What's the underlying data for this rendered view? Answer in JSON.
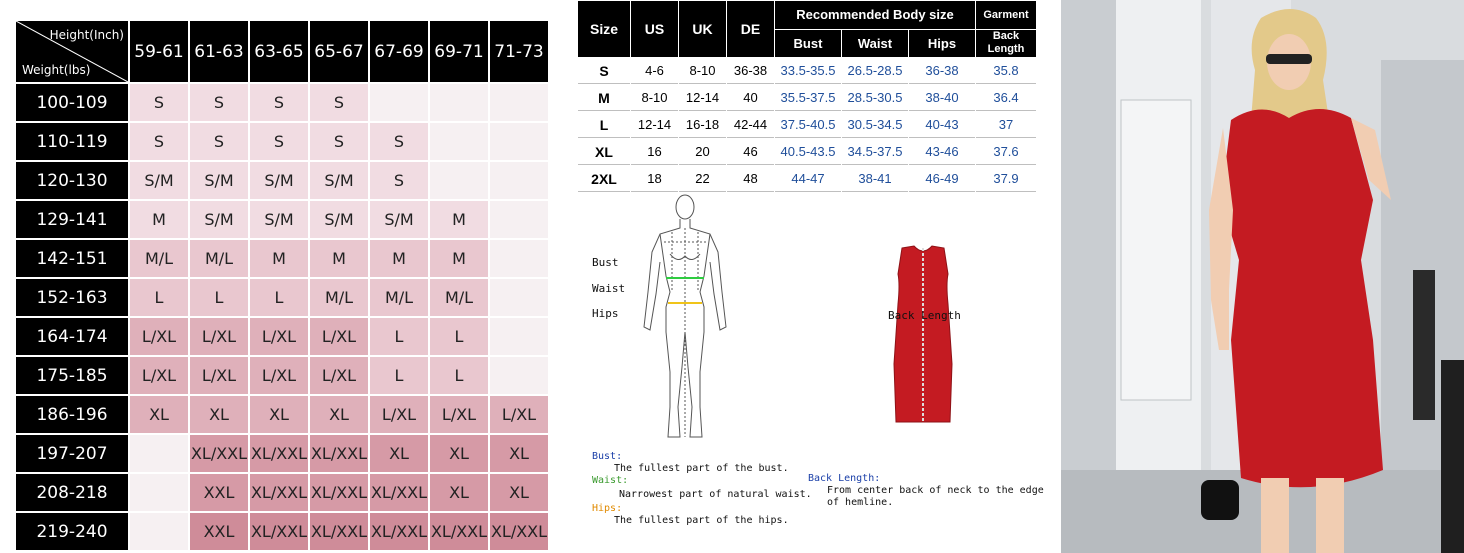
{
  "grid": {
    "corner_height": "Height(Inch)",
    "corner_weight": "Weight(lbs)",
    "heights": [
      "59-61",
      "61-63",
      "63-65",
      "65-67",
      "67-69",
      "69-71",
      "71-73"
    ],
    "rows": [
      {
        "weight": "100-109",
        "cells": [
          "S",
          "S",
          "S",
          "S",
          "",
          "",
          ""
        ],
        "shade": [
          1,
          1,
          1,
          1,
          0,
          0,
          0
        ]
      },
      {
        "weight": "110-119",
        "cells": [
          "S",
          "S",
          "S",
          "S",
          "S",
          "",
          ""
        ],
        "shade": [
          1,
          1,
          1,
          1,
          1,
          0,
          0
        ]
      },
      {
        "weight": "120-130",
        "cells": [
          "S/M",
          "S/M",
          "S/M",
          "S/M",
          "S",
          "",
          ""
        ],
        "shade": [
          1,
          1,
          1,
          1,
          1,
          0,
          0
        ]
      },
      {
        "weight": "129-141",
        "cells": [
          "M",
          "S/M",
          "S/M",
          "S/M",
          "S/M",
          "M",
          ""
        ],
        "shade": [
          1,
          1,
          1,
          1,
          1,
          1,
          0
        ]
      },
      {
        "weight": "142-151",
        "cells": [
          "M/L",
          "M/L",
          "M",
          "M",
          "M",
          "M",
          ""
        ],
        "shade": [
          2,
          2,
          2,
          2,
          2,
          2,
          0
        ]
      },
      {
        "weight": "152-163",
        "cells": [
          "L",
          "L",
          "L",
          "M/L",
          "M/L",
          "M/L",
          ""
        ],
        "shade": [
          2,
          2,
          2,
          2,
          2,
          2,
          0
        ]
      },
      {
        "weight": "164-174",
        "cells": [
          "L/XL",
          "L/XL",
          "L/XL",
          "L/XL",
          "L",
          "L",
          ""
        ],
        "shade": [
          3,
          3,
          3,
          3,
          2,
          2,
          0
        ]
      },
      {
        "weight": "175-185",
        "cells": [
          "L/XL",
          "L/XL",
          "L/XL",
          "L/XL",
          "L",
          "L",
          ""
        ],
        "shade": [
          3,
          3,
          3,
          3,
          2,
          2,
          0
        ]
      },
      {
        "weight": "186-196",
        "cells": [
          "XL",
          "XL",
          "XL",
          "XL",
          "L/XL",
          "L/XL",
          "L/XL"
        ],
        "shade": [
          3,
          3,
          3,
          3,
          3,
          3,
          3
        ]
      },
      {
        "weight": "197-207",
        "cells": [
          "",
          "XL/XXL",
          "XL/XXL",
          "XL/XXL",
          "XL",
          "XL",
          "XL"
        ],
        "shade": [
          0,
          4,
          4,
          4,
          4,
          4,
          4
        ]
      },
      {
        "weight": "208-218",
        "cells": [
          "",
          "XXL",
          "XL/XXL",
          "XL/XXL",
          "XL/XXL",
          "XL",
          "XL"
        ],
        "shade": [
          0,
          4,
          4,
          4,
          4,
          4,
          4
        ]
      },
      {
        "weight": "219-240",
        "cells": [
          "",
          "XXL",
          "XL/XXL",
          "XL/XXL",
          "XL/XXL",
          "XL/XXL",
          "XL/XXL"
        ],
        "shade": [
          0,
          5,
          5,
          5,
          5,
          5,
          5
        ]
      }
    ]
  },
  "size_chart": {
    "h_size": "Size",
    "h_us": "US",
    "h_uk": "UK",
    "h_de": "DE",
    "h_recommended": "Recommended Body size",
    "h_garment": "Garment",
    "h_bust": "Bust",
    "h_waist": "Waist",
    "h_hips": "Hips",
    "h_back_length": "Back Length",
    "rows": [
      {
        "size": "S",
        "us": "4-6",
        "uk": "8-10",
        "de": "36-38",
        "bust": "33.5-35.5",
        "waist": "26.5-28.5",
        "hips": "36-38",
        "back": "35.8"
      },
      {
        "size": "M",
        "us": "8-10",
        "uk": "12-14",
        "de": "40",
        "bust": "35.5-37.5",
        "waist": "28.5-30.5",
        "hips": "38-40",
        "back": "36.4"
      },
      {
        "size": "L",
        "us": "12-14",
        "uk": "16-18",
        "de": "42-44",
        "bust": "37.5-40.5",
        "waist": "30.5-34.5",
        "hips": "40-43",
        "back": "37"
      },
      {
        "size": "XL",
        "us": "16",
        "uk": "20",
        "de": "46",
        "bust": "40.5-43.5",
        "waist": "34.5-37.5",
        "hips": "43-46",
        "back": "37.6"
      },
      {
        "size": "2XL",
        "us": "18",
        "uk": "22",
        "de": "48",
        "bust": "44-47",
        "waist": "38-41",
        "hips": "46-49",
        "back": "37.9"
      }
    ]
  },
  "diagram": {
    "label_bust": "Bust",
    "label_waist": "Waist",
    "label_hips": "Hips",
    "label_back_length": "Back Length"
  },
  "notes": {
    "bust_title": "Bust:",
    "bust_text": "The fullest part of the bust.",
    "waist_title": "Waist:",
    "waist_text": "Narrowest part of natural waist.",
    "hips_title": "Hips:",
    "hips_text": "The fullest part of the hips.",
    "back_title": "Back Length:",
    "back_text_1": "From center back of neck to the edge",
    "back_text_2": "of hemline."
  },
  "colors": {
    "dress": "#c41b22",
    "bust_line": "#2ecc40",
    "hips_line": "#f0c419",
    "note_blue": "#1a3fa8",
    "note_green": "#3a9a2e",
    "note_orange": "#e08a00"
  }
}
